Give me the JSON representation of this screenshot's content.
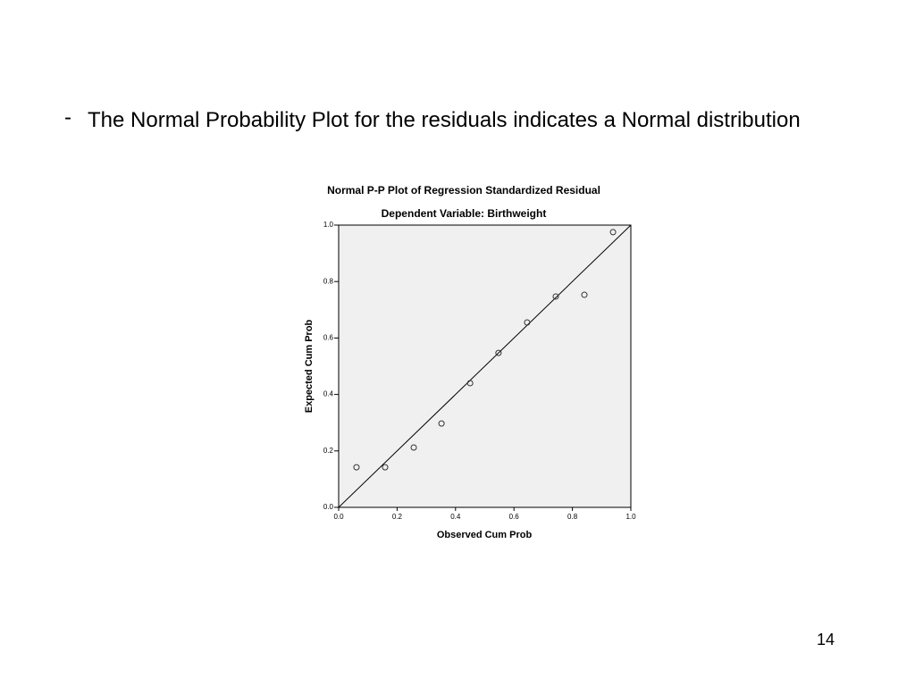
{
  "slide": {
    "bullet_marker": "-",
    "bullet_text": "The Normal Probability Plot for the residuals indicates a Normal distribution",
    "page_number": "14"
  },
  "chart_data": {
    "type": "scatter",
    "title": "Normal P-P Plot of Regression Standardized Residual",
    "subtitle": "Dependent Variable: Birthweight",
    "x_label": "Observed Cum Prob",
    "y_label": "Expected Cum Prob",
    "x": [
      0.061,
      0.159,
      0.257,
      0.352,
      0.45,
      0.547,
      0.645,
      0.743,
      0.841,
      0.939
    ],
    "values": [
      0.142,
      0.142,
      0.212,
      0.297,
      0.44,
      0.547,
      0.655,
      0.747,
      0.753,
      0.975
    ],
    "xlim": [
      0,
      1
    ],
    "ylim": [
      0,
      1
    ],
    "xticks": [
      {
        "value": 0,
        "label": "0.0"
      },
      0.2,
      0.4,
      0.6,
      0.8,
      {
        "value": 1,
        "label": "1.0"
      }
    ],
    "yticks": [
      {
        "value": 0,
        "label": "0.0"
      },
      0.2,
      0.4,
      0.6,
      0.8,
      {
        "value": 1,
        "label": "1.0"
      }
    ],
    "color": "#333333",
    "background": "#f0f0f0",
    "reference_line": true
  }
}
